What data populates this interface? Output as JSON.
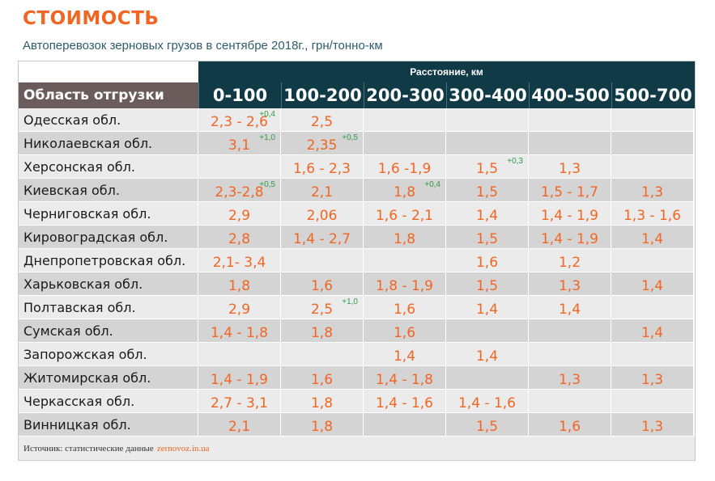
{
  "title": "СТОИМОСТЬ",
  "subtitle": "Автоперевозок зерновых грузов в сентябре 2018г., грн/тонно-км",
  "header": {
    "distance_label": "Расстояние, км",
    "region_label": "Область отгрузки",
    "columns": [
      "0-100",
      "100-200",
      "200-300",
      "300-400",
      "400-500",
      "500-700"
    ]
  },
  "rows": [
    {
      "region": "Одесская обл.",
      "cells": [
        {
          "v": "2,3 - 2,6",
          "d": "+0,4"
        },
        {
          "v": "2,5",
          "d": ""
        },
        {
          "v": "",
          "d": ""
        },
        {
          "v": "",
          "d": ""
        },
        {
          "v": "",
          "d": ""
        },
        {
          "v": "",
          "d": ""
        }
      ]
    },
    {
      "region": "Николаевская обл.",
      "cells": [
        {
          "v": "3,1",
          "d": "+1,0"
        },
        {
          "v": "2,35",
          "d": "+0,5"
        },
        {
          "v": "",
          "d": ""
        },
        {
          "v": "",
          "d": ""
        },
        {
          "v": "",
          "d": ""
        },
        {
          "v": "",
          "d": ""
        }
      ]
    },
    {
      "region": "Херсонская обл.",
      "cells": [
        {
          "v": "",
          "d": ""
        },
        {
          "v": "1,6 - 2,3",
          "d": ""
        },
        {
          "v": "1,6 -1,9",
          "d": ""
        },
        {
          "v": "1,5",
          "d": "+0,3"
        },
        {
          "v": "1,3",
          "d": ""
        },
        {
          "v": "",
          "d": ""
        }
      ]
    },
    {
      "region": "Киевская обл.",
      "cells": [
        {
          "v": "2,3-2,8",
          "d": "+0,5"
        },
        {
          "v": "2,1",
          "d": ""
        },
        {
          "v": "1,8",
          "d": "+0,4"
        },
        {
          "v": "1,5",
          "d": ""
        },
        {
          "v": "1,5 - 1,7",
          "d": ""
        },
        {
          "v": "1,3",
          "d": ""
        }
      ]
    },
    {
      "region": "Черниговская обл.",
      "cells": [
        {
          "v": "2,9",
          "d": ""
        },
        {
          "v": "2,06",
          "d": ""
        },
        {
          "v": "1,6 - 2,1",
          "d": ""
        },
        {
          "v": "1,4",
          "d": ""
        },
        {
          "v": "1,4 - 1,9",
          "d": ""
        },
        {
          "v": "1,3 - 1,6",
          "d": ""
        }
      ]
    },
    {
      "region": "Кировоградская обл.",
      "cells": [
        {
          "v": "2,8",
          "d": ""
        },
        {
          "v": "1,4 - 2,7",
          "d": ""
        },
        {
          "v": "1,8",
          "d": ""
        },
        {
          "v": "1,5",
          "d": ""
        },
        {
          "v": "1,4 - 1,9",
          "d": ""
        },
        {
          "v": "1,4",
          "d": ""
        }
      ]
    },
    {
      "region": "Днепропетровская обл.",
      "cells": [
        {
          "v": "2,1- 3,4",
          "d": ""
        },
        {
          "v": "",
          "d": ""
        },
        {
          "v": "",
          "d": ""
        },
        {
          "v": "1,6",
          "d": ""
        },
        {
          "v": "1,2",
          "d": ""
        },
        {
          "v": "",
          "d": ""
        }
      ]
    },
    {
      "region": "Харьковская обл.",
      "cells": [
        {
          "v": "1,8",
          "d": ""
        },
        {
          "v": "1,6",
          "d": ""
        },
        {
          "v": "1,8 - 1,9",
          "d": ""
        },
        {
          "v": "1,5",
          "d": ""
        },
        {
          "v": "1,3",
          "d": ""
        },
        {
          "v": "1,4",
          "d": ""
        }
      ]
    },
    {
      "region": "Полтавская обл.",
      "cells": [
        {
          "v": "2,9",
          "d": ""
        },
        {
          "v": "2,5",
          "d": "+1,0"
        },
        {
          "v": "1,6",
          "d": ""
        },
        {
          "v": "1,4",
          "d": ""
        },
        {
          "v": "1,4",
          "d": ""
        },
        {
          "v": "",
          "d": ""
        }
      ]
    },
    {
      "region": "Сумская обл.",
      "cells": [
        {
          "v": "1,4 - 1,8",
          "d": ""
        },
        {
          "v": "1,8",
          "d": ""
        },
        {
          "v": "1,6",
          "d": ""
        },
        {
          "v": "",
          "d": ""
        },
        {
          "v": "",
          "d": ""
        },
        {
          "v": "1,4",
          "d": ""
        }
      ]
    },
    {
      "region": "Запорожская обл.",
      "cells": [
        {
          "v": "",
          "d": ""
        },
        {
          "v": "",
          "d": ""
        },
        {
          "v": "1,4",
          "d": ""
        },
        {
          "v": "1,4",
          "d": ""
        },
        {
          "v": "",
          "d": ""
        },
        {
          "v": "",
          "d": ""
        }
      ]
    },
    {
      "region": "Житомирская обл.",
      "cells": [
        {
          "v": "1,4 - 1,9",
          "d": ""
        },
        {
          "v": "1,6",
          "d": ""
        },
        {
          "v": "1,4 - 1,8",
          "d": ""
        },
        {
          "v": "",
          "d": ""
        },
        {
          "v": "1,3",
          "d": ""
        },
        {
          "v": "1,3",
          "d": ""
        }
      ]
    },
    {
      "region": "Черкасская обл.",
      "cells": [
        {
          "v": "2,7 - 3,1",
          "d": ""
        },
        {
          "v": "1,8",
          "d": ""
        },
        {
          "v": "1,4 - 1,6",
          "d": ""
        },
        {
          "v": "1,4 - 1,6",
          "d": ""
        },
        {
          "v": "",
          "d": ""
        },
        {
          "v": "",
          "d": ""
        }
      ]
    },
    {
      "region": "Винницкая обл.",
      "cells": [
        {
          "v": "2,1",
          "d": ""
        },
        {
          "v": "1,8",
          "d": ""
        },
        {
          "v": "",
          "d": ""
        },
        {
          "v": "1,5",
          "d": ""
        },
        {
          "v": "1,6",
          "d": ""
        },
        {
          "v": "1,3",
          "d": ""
        }
      ]
    }
  ],
  "source": {
    "label": "Источник: статистические данные",
    "site": "zernovoz.in.ua"
  },
  "colors": {
    "accent": "#f26522",
    "header_bg": "#0f3a46",
    "delta_green": "#2e9c47"
  }
}
